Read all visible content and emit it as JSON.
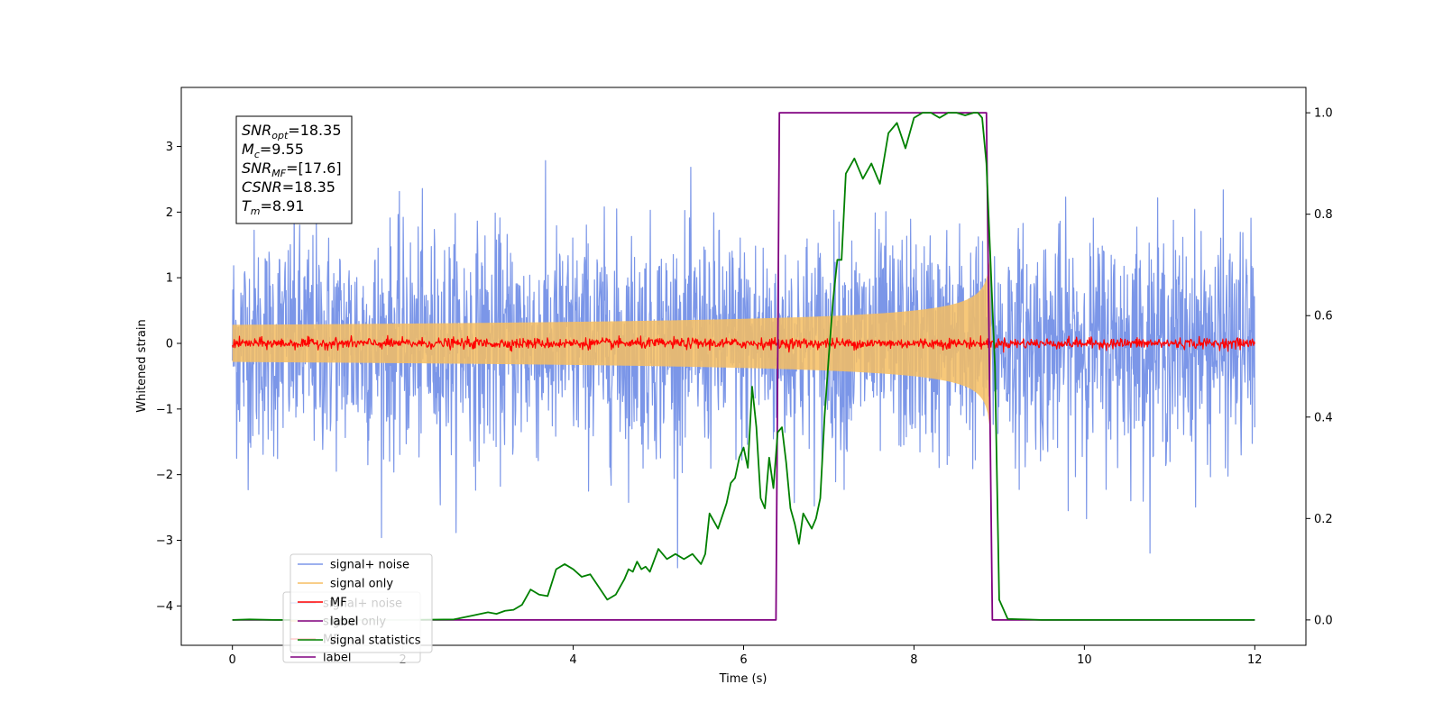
{
  "chart_data": {
    "type": "line",
    "title": "",
    "xlabel": "Time (s)",
    "ylabel": "Whitened strain",
    "y2label": "",
    "xlim": [
      -0.6,
      12.6
    ],
    "ylim": [
      -4.6,
      3.9
    ],
    "y2lim": [
      -0.05,
      1.05
    ],
    "x_ticks": [
      0,
      2,
      4,
      6,
      8,
      10,
      12
    ],
    "y_ticks": [
      3,
      2,
      1,
      0,
      -1,
      -2,
      -3,
      -4
    ],
    "y2_ticks": [
      1.0,
      0.8,
      0.6,
      0.4,
      0.2,
      0.0
    ],
    "x_tick_labels": [
      "0",
      "2",
      "4",
      "6",
      "8",
      "10",
      "12"
    ],
    "y_tick_labels": [
      "3",
      "2",
      "1",
      "0",
      "−1",
      "−2",
      "−3",
      "−4"
    ],
    "y2_tick_labels": [
      "1.0",
      "0.8",
      "0.6",
      "0.4",
      "0.2",
      "0.0"
    ],
    "grid": false,
    "legend_position": "lower-left",
    "annotation": {
      "lines": [
        {
          "base": "SNR",
          "sub": "opt",
          "rest": "=18.35"
        },
        {
          "base": "M",
          "sub": "c",
          "rest": "=9.55"
        },
        {
          "base": "SNR",
          "sub": "MF",
          "rest": "=[17.6]"
        },
        {
          "base": "CSNR",
          "sub": "",
          "rest": "=18.35"
        },
        {
          "base": "T",
          "sub": "m",
          "rest": "=8.91"
        }
      ]
    },
    "series": [
      {
        "name": "signal+ noise",
        "color": "#7b96e8",
        "axis": "left",
        "kind": "noise",
        "x_range": [
          0,
          12
        ],
        "amplitude_std": 0.85,
        "peak_abs": 3.5
      },
      {
        "name": "signal only",
        "color": "#f6be62",
        "axis": "left",
        "kind": "chirp",
        "x_range": [
          0,
          8.91
        ],
        "merger_time": 8.91,
        "peak_amplitude": 1.3
      },
      {
        "name": "MF",
        "color": "#ff0000",
        "axis": "left",
        "kind": "noise",
        "x_range": [
          0,
          12
        ],
        "amplitude_std": 0.04,
        "peak_abs": 0.15
      },
      {
        "name": "label",
        "color": "#800080",
        "axis": "right",
        "kind": "step",
        "x": [
          0,
          6.38,
          6.42,
          8.85,
          8.92,
          12
        ],
        "y": [
          0,
          0,
          1,
          1,
          0,
          0
        ]
      },
      {
        "name": "signal statistics",
        "color": "#008000",
        "axis": "right",
        "kind": "line",
        "x": [
          0,
          0.2,
          0.5,
          1.0,
          1.5,
          2.0,
          2.6,
          2.8,
          3.0,
          3.1,
          3.2,
          3.3,
          3.4,
          3.5,
          3.6,
          3.7,
          3.8,
          3.9,
          4.0,
          4.1,
          4.2,
          4.3,
          4.4,
          4.5,
          4.6,
          4.65,
          4.7,
          4.75,
          4.8,
          4.85,
          4.9,
          5.0,
          5.1,
          5.2,
          5.3,
          5.4,
          5.5,
          5.55,
          5.6,
          5.7,
          5.8,
          5.85,
          5.9,
          5.95,
          6.0,
          6.05,
          6.1,
          6.15,
          6.2,
          6.25,
          6.3,
          6.35,
          6.4,
          6.45,
          6.5,
          6.55,
          6.6,
          6.65,
          6.7,
          6.8,
          6.85,
          6.9,
          6.95,
          7.0,
          7.05,
          7.1,
          7.15,
          7.2,
          7.3,
          7.4,
          7.5,
          7.6,
          7.65,
          7.7,
          7.8,
          7.9,
          8.0,
          8.1,
          8.2,
          8.3,
          8.4,
          8.5,
          8.6,
          8.7,
          8.75,
          8.8,
          8.85,
          8.9,
          8.95,
          9.0,
          9.1,
          9.5,
          10.0,
          11.0,
          12.0
        ],
        "y": [
          0.0,
          0.001,
          0.0,
          0.0,
          0.0,
          0.0,
          0.001,
          0.008,
          0.015,
          0.012,
          0.018,
          0.02,
          0.03,
          0.06,
          0.05,
          0.047,
          0.1,
          0.11,
          0.1,
          0.085,
          0.09,
          0.065,
          0.04,
          0.05,
          0.08,
          0.1,
          0.095,
          0.115,
          0.1,
          0.105,
          0.095,
          0.14,
          0.12,
          0.13,
          0.12,
          0.13,
          0.11,
          0.13,
          0.21,
          0.18,
          0.23,
          0.27,
          0.28,
          0.32,
          0.34,
          0.3,
          0.46,
          0.38,
          0.24,
          0.22,
          0.32,
          0.26,
          0.37,
          0.38,
          0.31,
          0.22,
          0.19,
          0.15,
          0.21,
          0.18,
          0.2,
          0.24,
          0.4,
          0.52,
          0.63,
          0.71,
          0.71,
          0.88,
          0.91,
          0.87,
          0.9,
          0.86,
          0.91,
          0.96,
          0.98,
          0.93,
          0.99,
          1.0,
          1.0,
          0.99,
          1.0,
          1.0,
          0.995,
          1.0,
          1.0,
          0.99,
          0.9,
          0.7,
          0.5,
          0.04,
          0.002,
          0.0,
          0.0,
          0.0,
          0.0
        ]
      }
    ],
    "ghost_legend_entries": [
      "signal+ noise",
      "signal only",
      "MF",
      "label"
    ]
  }
}
